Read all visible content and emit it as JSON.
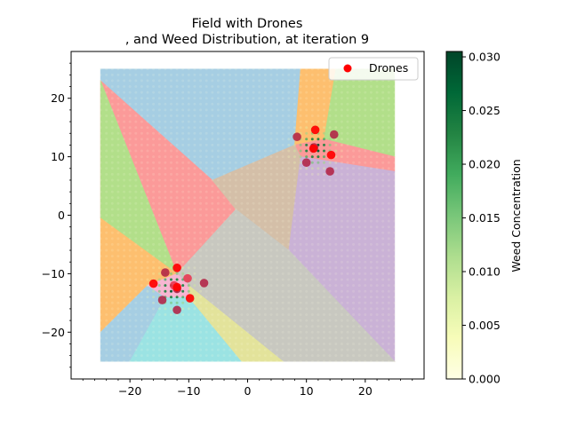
{
  "chart_data": {
    "type": "scatter",
    "title_line1": "Field with Drones",
    "title_line2": ", and Weed Distribution, at iteration 9",
    "xlim": [
      -30,
      30
    ],
    "ylim": [
      -28,
      28
    ],
    "x_ticks": [
      -20,
      -10,
      0,
      10,
      20
    ],
    "y_ticks": [
      -20,
      -10,
      0,
      10,
      20
    ],
    "field_extent": {
      "x": [
        -25,
        25
      ],
      "y": [
        -25,
        25
      ]
    },
    "legend": {
      "label": "Drones",
      "placement": "upper right",
      "color": "#ff0000"
    },
    "colorbar": {
      "label": "Weed Concentration",
      "min": 0.0,
      "max": 0.0305,
      "ticks": [
        "0.000",
        "0.005",
        "0.010",
        "0.015",
        "0.020",
        "0.025",
        "0.030"
      ],
      "cmap": [
        "#ffffe5",
        "#f7fcb9",
        "#d9f0a3",
        "#addd8e",
        "#78c679",
        "#41ab5d",
        "#238443",
        "#006837",
        "#004529"
      ]
    },
    "regions": [
      {
        "color": "#a6cee3",
        "points": [
          [
            -25,
            25
          ],
          [
            9,
            25
          ],
          [
            8,
            12
          ],
          [
            -6,
            6
          ],
          [
            -25,
            23
          ]
        ]
      },
      {
        "color": "#fdbf6f",
        "points": [
          [
            9,
            25
          ],
          [
            15,
            25
          ],
          [
            13,
            13
          ],
          [
            8,
            12
          ]
        ]
      },
      {
        "color": "#b2df8a",
        "points": [
          [
            15,
            25
          ],
          [
            25,
            25
          ],
          [
            25,
            10
          ],
          [
            13,
            13
          ]
        ]
      },
      {
        "color": "#fb9a99",
        "points": [
          [
            13,
            13
          ],
          [
            25,
            10
          ],
          [
            25,
            7.5
          ],
          [
            9,
            10
          ],
          [
            8,
            12
          ]
        ]
      },
      {
        "color": "#fb9a99",
        "points": [
          [
            -25,
            23
          ],
          [
            -6,
            6
          ],
          [
            -2,
            1
          ],
          [
            -12,
            -10
          ],
          [
            -25,
            -0.5
          ]
        ]
      },
      {
        "color": "#d4bfa8",
        "points": [
          [
            -6,
            6
          ],
          [
            8,
            12
          ],
          [
            9,
            10
          ],
          [
            7,
            -6
          ],
          [
            -2,
            1
          ]
        ]
      },
      {
        "color": "#cab2d6",
        "points": [
          [
            9,
            10
          ],
          [
            25,
            7.5
          ],
          [
            25,
            -25
          ],
          [
            7,
            -6
          ]
        ]
      },
      {
        "color": "#c8c8c0",
        "points": [
          [
            -2,
            1
          ],
          [
            7,
            -6
          ],
          [
            25,
            -25
          ],
          [
            6,
            -25
          ],
          [
            -10,
            -12
          ],
          [
            -12,
            -10
          ]
        ]
      },
      {
        "color": "#b2df8a",
        "points": [
          [
            -25,
            23
          ],
          [
            -25,
            -0.5
          ],
          [
            -12,
            -10
          ]
        ]
      },
      {
        "color": "#fdbf6f",
        "points": [
          [
            -25,
            -0.5
          ],
          [
            -12,
            -10
          ],
          [
            -17,
            -12
          ],
          [
            -25,
            -20
          ]
        ]
      },
      {
        "color": "#a6cee3",
        "points": [
          [
            -25,
            -20
          ],
          [
            -17,
            -12
          ],
          [
            -14,
            -14
          ],
          [
            -20,
            -25
          ],
          [
            -25,
            -25
          ]
        ]
      },
      {
        "color": "#9be3e3",
        "points": [
          [
            -20,
            -25
          ],
          [
            -14,
            -14
          ],
          [
            -10,
            -14
          ],
          [
            -1,
            -25
          ]
        ]
      },
      {
        "color": "#e3e39b",
        "points": [
          [
            -1,
            -25
          ],
          [
            -10,
            -14
          ],
          [
            -10,
            -12
          ],
          [
            6,
            -25
          ]
        ]
      },
      {
        "color": "#f7b6d2",
        "points": [
          [
            -12,
            -10
          ],
          [
            -10,
            -12
          ],
          [
            -10,
            -14
          ],
          [
            -14,
            -14
          ],
          [
            -17,
            -12
          ]
        ]
      }
    ],
    "weed_clusters": [
      {
        "center": [
          -12.5,
          -12.5
        ],
        "peak": 0.03,
        "sigma": 2.2,
        "radius": 5
      },
      {
        "center": [
          11.5,
          11.5
        ],
        "peak": 0.03,
        "sigma": 2.2,
        "radius": 5
      }
    ],
    "drone_series": [
      {
        "name": "Drones",
        "color": "#ff0000",
        "points": [
          [
            -12,
            -9
          ],
          [
            -16,
            -11.7
          ],
          [
            -12,
            -12.3
          ],
          [
            -9.8,
            -14.2
          ],
          [
            11.5,
            14.6
          ],
          [
            11.2,
            11.4
          ],
          [
            14.2,
            10.3
          ]
        ]
      }
    ],
    "marker_series": [
      {
        "color": "#b22245",
        "points": [
          [
            -14,
            -9.8
          ],
          [
            -7.4,
            -11.6
          ],
          [
            -14.5,
            -14.5
          ],
          [
            -12,
            -16.2
          ],
          [
            -12,
            -12.6
          ],
          [
            8.4,
            13.4
          ],
          [
            14.7,
            13.8
          ],
          [
            10,
            9
          ],
          [
            14,
            7.5
          ],
          [
            11.3,
            11.6
          ]
        ]
      },
      {
        "color": "#e8344e",
        "points": [
          [
            -10.2,
            -10.8
          ],
          [
            -12.5,
            -12
          ]
        ]
      }
    ]
  }
}
